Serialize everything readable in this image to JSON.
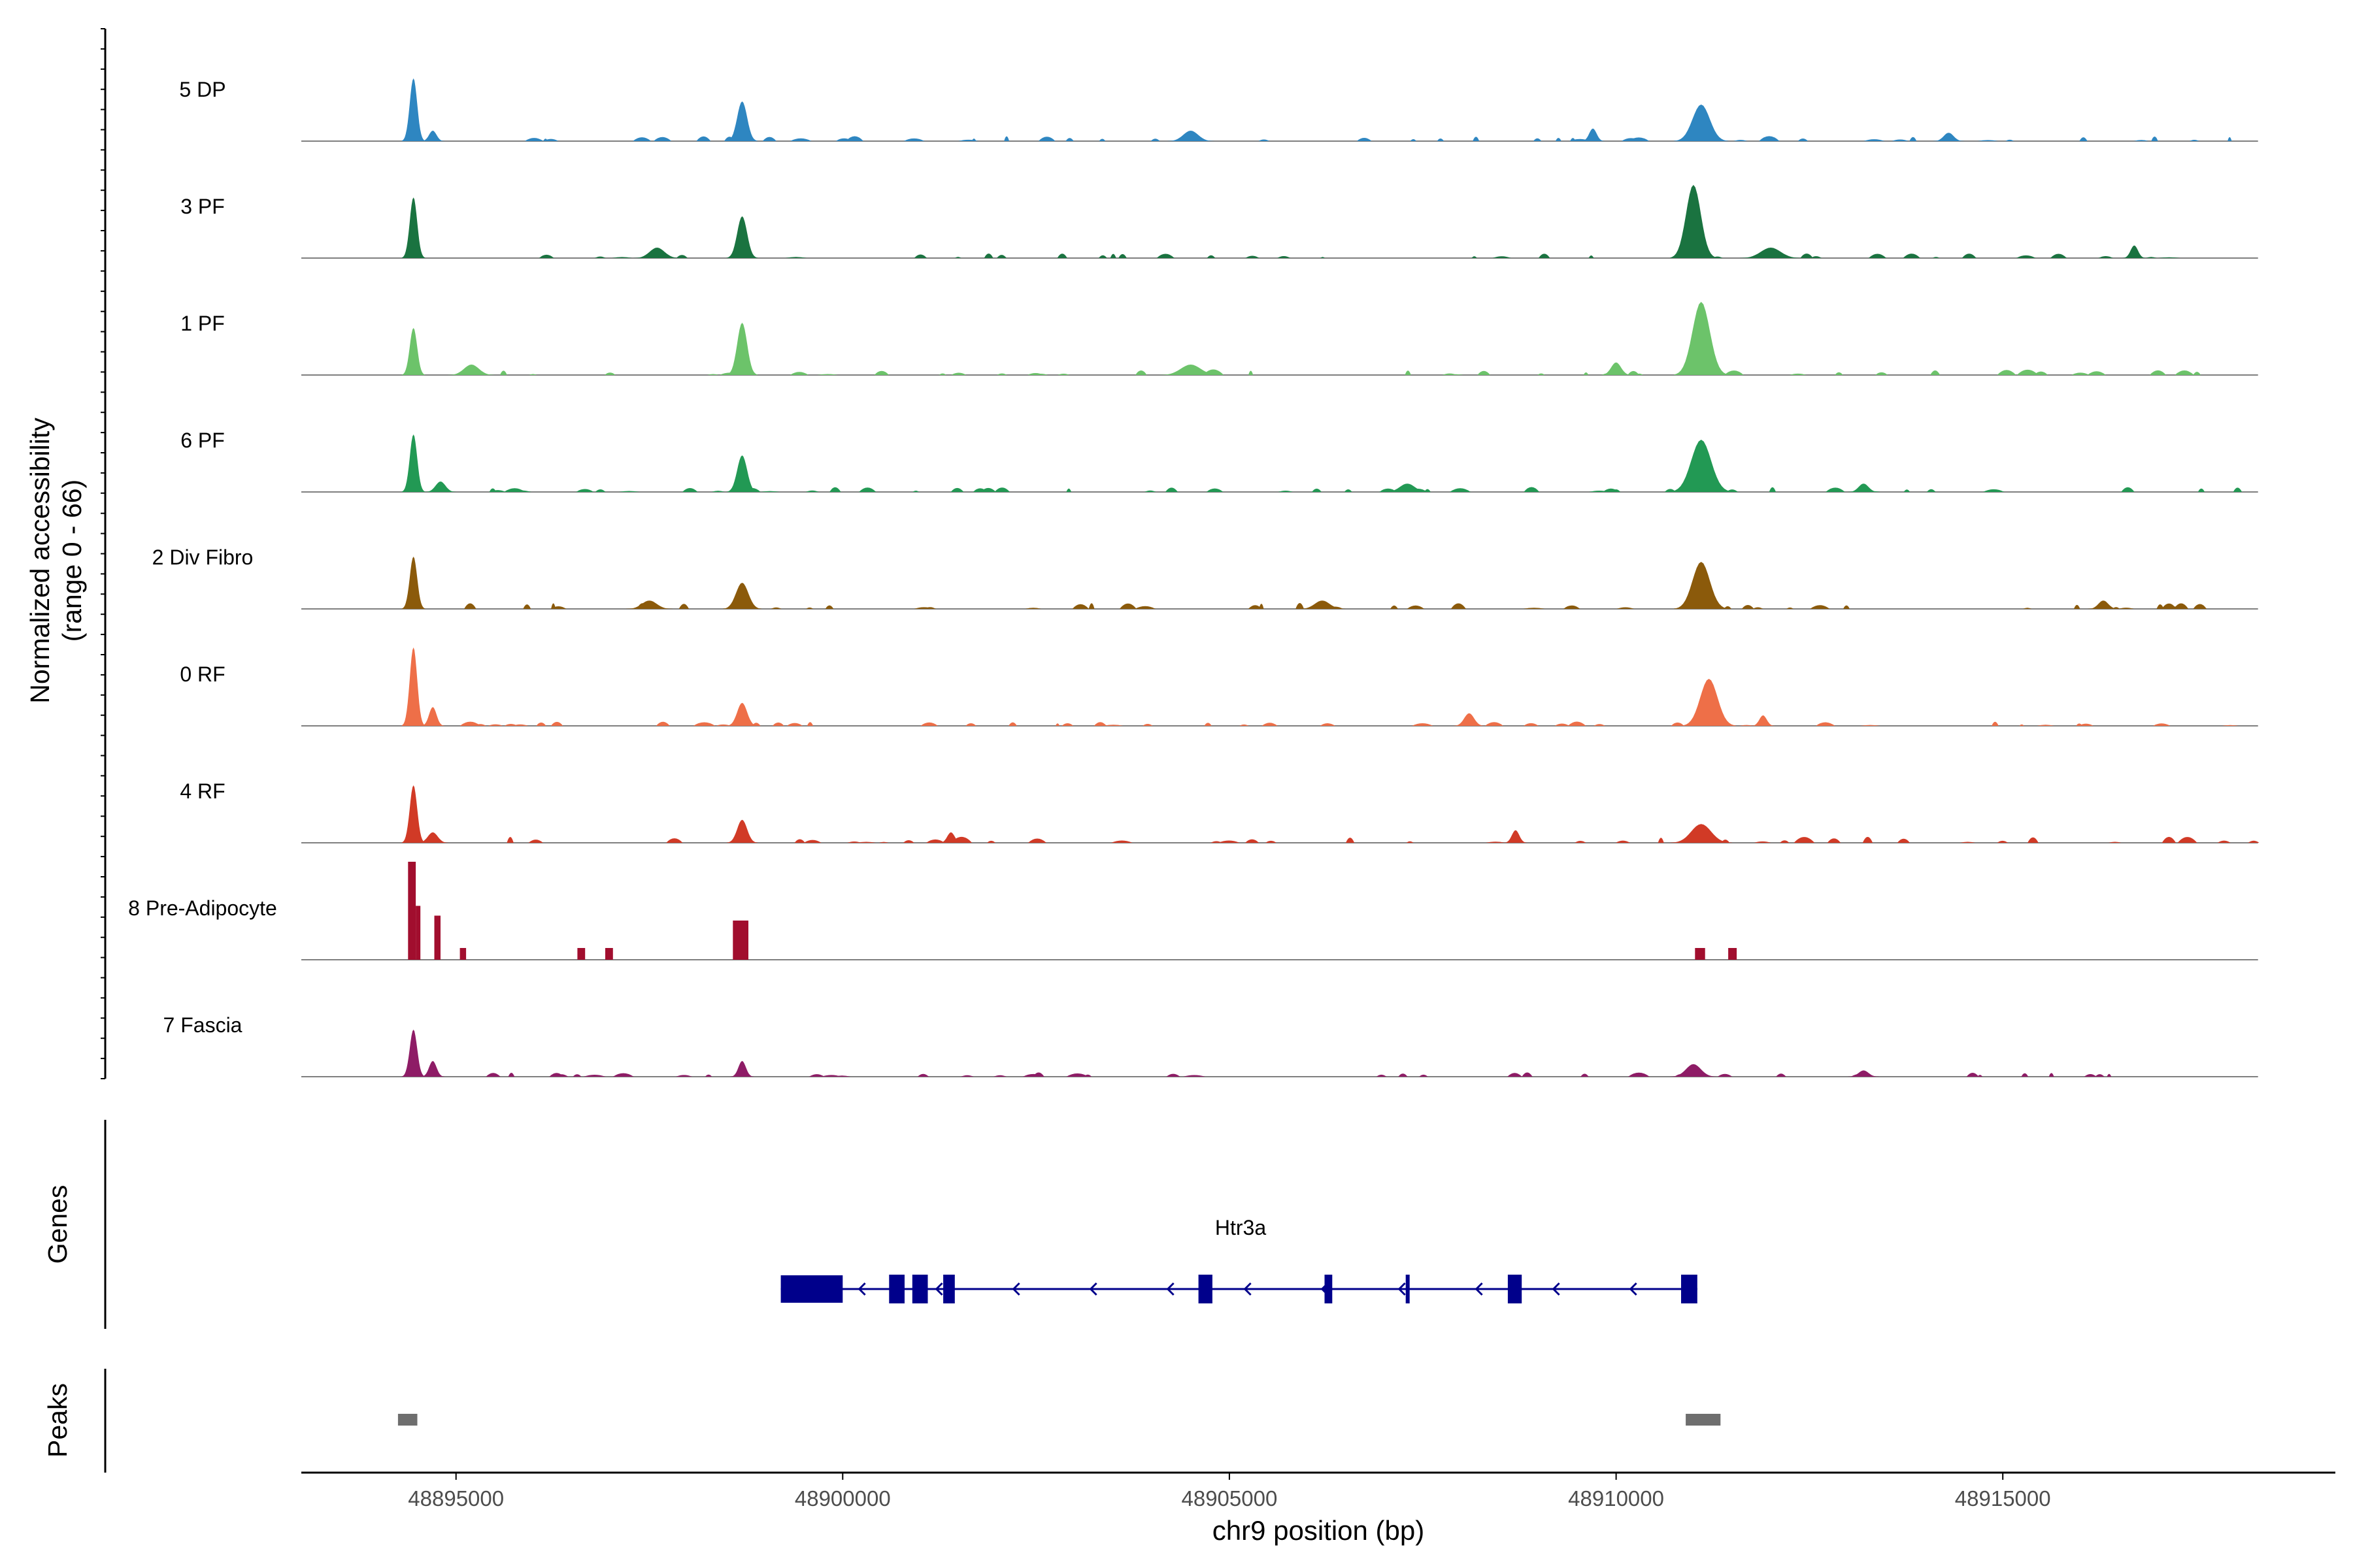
{
  "chart_data": {
    "type": "area",
    "title": "",
    "region": {
      "chrom": "chr9",
      "start": 48893000,
      "end": 48919300
    },
    "ylabel_line1": "Normalized accessibility",
    "ylabel_line2": "(range 0 - 66)",
    "ylim": [
      0,
      66
    ],
    "xlabel": "chr9 position (bp)",
    "xticks": [
      48895000,
      48900000,
      48905000,
      48910000,
      48915000
    ],
    "xtick_labels": [
      "48895000",
      "48900000",
      "48905000",
      "48910000",
      "48915000"
    ],
    "tracks": [
      {
        "name": "5 DP",
        "color": "#2e86c1",
        "baseline_segments": [
          [
            48893000,
            48918300
          ]
        ],
        "peaks": [
          [
            48894450,
            60,
            150
          ],
          [
            48894700,
            10,
            150
          ],
          [
            48898700,
            38,
            200
          ],
          [
            48911100,
            35,
            350
          ],
          [
            48904500,
            10,
            300
          ],
          [
            48909700,
            12,
            150
          ],
          [
            48914300,
            8,
            200
          ]
        ],
        "noise": [
          [
            48895000,
            48918300,
            5,
            11
          ]
        ]
      },
      {
        "name": "3 PF",
        "color": "#1a7340",
        "baseline_segments": [
          [
            48893000,
            48918300
          ]
        ],
        "peaks": [
          [
            48894450,
            58,
            150
          ],
          [
            48898700,
            40,
            200
          ],
          [
            48911000,
            70,
            300
          ],
          [
            48897600,
            10,
            300
          ],
          [
            48912000,
            10,
            400
          ],
          [
            48916700,
            12,
            150
          ]
        ],
        "noise": [
          [
            48895000,
            48918300,
            5,
            23
          ]
        ]
      },
      {
        "name": "1 PF",
        "color": "#6cc36a",
        "baseline_segments": [
          [
            48893000,
            48918300
          ]
        ],
        "peaks": [
          [
            48894450,
            45,
            150
          ],
          [
            48898700,
            50,
            200
          ],
          [
            48911100,
            70,
            350
          ],
          [
            48895200,
            10,
            300
          ],
          [
            48904500,
            10,
            400
          ],
          [
            48910000,
            12,
            200
          ]
        ],
        "noise": [
          [
            48895000,
            48918300,
            6,
            37
          ]
        ]
      },
      {
        "name": "6 PF",
        "color": "#229954",
        "baseline_segments": [
          [
            48893000,
            48918300
          ]
        ],
        "peaks": [
          [
            48894450,
            55,
            150
          ],
          [
            48898700,
            35,
            200
          ],
          [
            48911100,
            50,
            400
          ],
          [
            48894800,
            10,
            200
          ],
          [
            48907300,
            8,
            300
          ],
          [
            48913200,
            8,
            200
          ]
        ],
        "noise": [
          [
            48895000,
            48918300,
            5,
            41
          ]
        ]
      },
      {
        "name": "2 Div Fibro",
        "color": "#8b5a0b",
        "baseline_segments": [
          [
            48893000,
            48918300
          ]
        ],
        "peaks": [
          [
            48894450,
            50,
            150
          ],
          [
            48898700,
            25,
            250
          ],
          [
            48911100,
            45,
            350
          ],
          [
            48897500,
            8,
            300
          ],
          [
            48906200,
            8,
            300
          ],
          [
            48916300,
            8,
            200
          ]
        ],
        "noise": [
          [
            48895000,
            48918300,
            6,
            53
          ]
        ]
      },
      {
        "name": "0 RF",
        "color": "#ee6f48",
        "baseline_segments": [
          [
            48893000,
            48918300
          ]
        ],
        "peaks": [
          [
            48894450,
            75,
            150
          ],
          [
            48894700,
            18,
            150
          ],
          [
            48898700,
            22,
            200
          ],
          [
            48911200,
            45,
            350
          ],
          [
            48908100,
            12,
            200
          ],
          [
            48911900,
            10,
            150
          ]
        ],
        "noise": [
          [
            48895000,
            48918300,
            4,
            59
          ]
        ]
      },
      {
        "name": "4 RF",
        "color": "#d13a26",
        "baseline_segments": [
          [
            48893000,
            48918300
          ]
        ],
        "peaks": [
          [
            48894450,
            55,
            150
          ],
          [
            48894700,
            10,
            200
          ],
          [
            48898700,
            22,
            200
          ],
          [
            48911100,
            18,
            400
          ],
          [
            48908700,
            12,
            150
          ],
          [
            48901400,
            10,
            150
          ]
        ],
        "noise": [
          [
            48895000,
            48918300,
            6,
            61
          ]
        ]
      },
      {
        "name": "8 Pre-Adipocyte",
        "color": "#a10e2e",
        "baseline_segments": [
          [
            48893000,
            48918300
          ]
        ],
        "blocks": [
          [
            48894380,
            48894480,
            100
          ],
          [
            48894480,
            48894540,
            55
          ],
          [
            48894720,
            48894800,
            45
          ],
          [
            48895050,
            48895130,
            12
          ],
          [
            48896570,
            48896670,
            12
          ],
          [
            48896930,
            48897030,
            12
          ],
          [
            48898580,
            48898780,
            40
          ],
          [
            48911020,
            48911150,
            12
          ],
          [
            48911450,
            48911560,
            12
          ]
        ],
        "peaks": [
          [
            48898680,
            15,
            60
          ]
        ],
        "noise": []
      },
      {
        "name": "7 Fascia",
        "color": "#8e1c66",
        "baseline_segments": [
          [
            48893000,
            48918300
          ]
        ],
        "peaks": [
          [
            48894450,
            45,
            150
          ],
          [
            48894700,
            15,
            150
          ],
          [
            48898700,
            15,
            150
          ],
          [
            48911000,
            12,
            300
          ],
          [
            48913200,
            6,
            200
          ]
        ],
        "noise": [
          [
            48895000,
            48916800,
            4,
            71
          ]
        ]
      }
    ],
    "genes": {
      "label": "Genes",
      "gene_name": "Htr3a",
      "color": "#00008b",
      "strand": "-",
      "span": [
        48899200,
        48911050
      ],
      "exons": [
        [
          48899200,
          48900000,
          "utr"
        ],
        [
          48900600,
          48900800,
          "cds"
        ],
        [
          48900900,
          48901100,
          "cds"
        ],
        [
          48901300,
          48901450,
          "cds"
        ],
        [
          48904600,
          48904780,
          "cds"
        ],
        [
          48906230,
          48906330,
          "cds"
        ],
        [
          48907280,
          48907310,
          "cds"
        ],
        [
          48908600,
          48908780,
          "cds"
        ],
        [
          48910840,
          48911050,
          "cds"
        ]
      ]
    },
    "peaks_track": {
      "label": "Peaks",
      "color": "#6e6e6e",
      "regions": [
        [
          48894250,
          48894500
        ],
        [
          48910900,
          48911350
        ]
      ]
    }
  }
}
